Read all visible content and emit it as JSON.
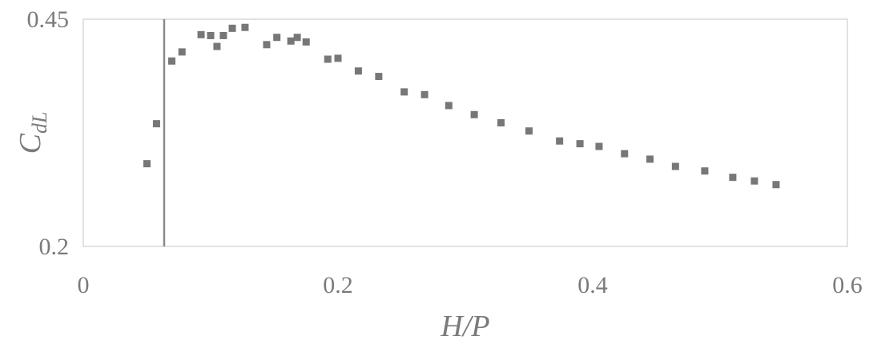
{
  "chart_data": {
    "type": "scatter",
    "title": "",
    "xlabel": "H/P",
    "ylabel_main": "C",
    "ylabel_sub": "dL",
    "xlim": [
      0,
      0.6
    ],
    "ylim": [
      0.2,
      0.45
    ],
    "xticks": [
      0,
      0.2,
      0.4,
      0.6
    ],
    "xtick_labels": [
      "0",
      "0.2",
      "0.4",
      "0.6"
    ],
    "yticks": [
      0.2,
      0.45
    ],
    "ytick_labels": [
      "0.2",
      "0.45"
    ],
    "grid": false,
    "legend": "none",
    "marker_color": "#777777",
    "reference_line_x": 0.0635,
    "series": [
      {
        "x": [
          0.05,
          0.0575,
          0.0695,
          0.0775,
          0.0925,
          0.1,
          0.105,
          0.11,
          0.117,
          0.127,
          0.144,
          0.152,
          0.163,
          0.168,
          0.175,
          0.192,
          0.2,
          0.216,
          0.232,
          0.252,
          0.268,
          0.287,
          0.307,
          0.328,
          0.35,
          0.374,
          0.39,
          0.405,
          0.425,
          0.445,
          0.465,
          0.488,
          0.51,
          0.527,
          0.544
        ],
        "y": [
          0.291,
          0.335,
          0.404,
          0.414,
          0.433,
          0.432,
          0.42,
          0.432,
          0.44,
          0.441,
          0.422,
          0.43,
          0.426,
          0.43,
          0.425,
          0.406,
          0.407,
          0.393,
          0.387,
          0.37,
          0.367,
          0.355,
          0.345,
          0.336,
          0.327,
          0.316,
          0.313,
          0.31,
          0.302,
          0.296,
          0.288,
          0.283,
          0.276,
          0.272,
          0.268
        ]
      }
    ]
  }
}
